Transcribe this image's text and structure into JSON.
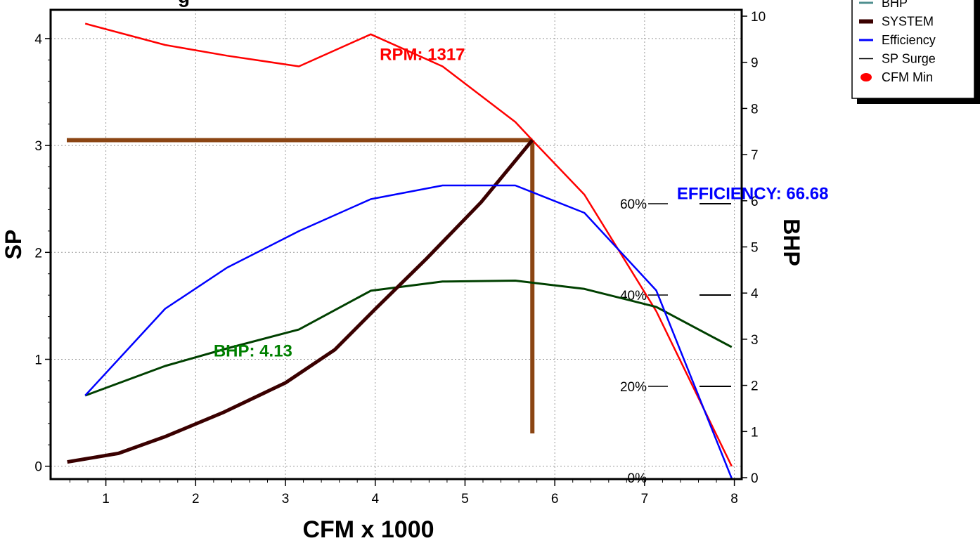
{
  "chart_data": {
    "type": "line",
    "xlabel": "CFM x 1000",
    "ylabel": "SP",
    "y2label": "BHP",
    "xlim": [
      0.55,
      8.0
    ],
    "ylim": [
      -0.1,
      4.25
    ],
    "y2lim": [
      0,
      10
    ],
    "x_ticks": [
      1,
      2,
      3,
      4,
      5,
      6,
      7,
      8
    ],
    "y_ticks": [
      0,
      1,
      2,
      3,
      4
    ],
    "y2_ticks": [
      0,
      1,
      2,
      3,
      4,
      5,
      6,
      7,
      8,
      9,
      10
    ],
    "efficiency_ticks": [
      {
        "label": "60%",
        "value": 60
      },
      {
        "label": "40%",
        "value": 40
      },
      {
        "label": "20%",
        "value": 20
      },
      {
        "label": "0%",
        "value": 0
      }
    ],
    "grid": true,
    "legend_position": "top-right",
    "series": [
      {
        "name": "RPM",
        "axis": "y",
        "color": "#ff0000",
        "x": [
          0.77,
          1.66,
          2.35,
          3.15,
          3.95,
          4.75,
          5.56,
          5.75,
          6.33,
          7.13,
          7.97
        ],
        "values": [
          4.14,
          3.94,
          3.84,
          3.74,
          4.04,
          3.74,
          3.22,
          3.05,
          2.54,
          1.45,
          0.0
        ]
      },
      {
        "name": "BHP",
        "axis": "y2",
        "color": "#004000",
        "x": [
          0.77,
          1.66,
          2.35,
          3.15,
          3.95,
          4.75,
          5.56,
          6.33,
          7.13,
          7.97
        ],
        "values": [
          1.78,
          2.42,
          2.8,
          3.21,
          4.05,
          4.25,
          4.27,
          4.09,
          3.7,
          2.83
        ]
      },
      {
        "name": "SYSTEM",
        "axis": "y",
        "color": "#3a0000",
        "x": [
          0.57,
          1.14,
          1.67,
          2.3,
          3.0,
          3.55,
          4.0,
          4.57,
          5.18,
          5.75
        ],
        "values": [
          0.04,
          0.12,
          0.28,
          0.5,
          0.78,
          1.09,
          1.47,
          1.94,
          2.47,
          3.05
        ]
      },
      {
        "name": "Efficiency",
        "axis": "efficiency",
        "color": "#0000ff",
        "x": [
          0.77,
          1.66,
          2.35,
          3.15,
          3.95,
          4.75,
          5.56,
          6.33,
          7.13,
          7.97
        ],
        "values": [
          18,
          37,
          46,
          54,
          61,
          64,
          64,
          58,
          41,
          -1
        ]
      }
    ],
    "legend": [
      {
        "label": "BHP",
        "color": "#4f8f8f",
        "kind": "line"
      },
      {
        "label": "SYSTEM",
        "color": "#3a0000",
        "kind": "thick-line"
      },
      {
        "label": "Efficiency",
        "color": "#0000ff",
        "kind": "line"
      },
      {
        "label": "SP Surge",
        "color": "#000000",
        "kind": "thin-line"
      },
      {
        "label": "CFM Min",
        "color": "#ff0000",
        "kind": "dot"
      }
    ],
    "operating_point": {
      "cfm": 5.75,
      "sp": 3.05,
      "color": "#8b4513"
    },
    "annotations": [
      {
        "text": "RPM: 1317",
        "color": "#ff0000",
        "x": 4.05,
        "y": 3.85
      },
      {
        "text": "BHP: 4.13",
        "color": "#008000",
        "x": 2.2,
        "y": 1.08
      },
      {
        "text": "EFFICIENCY: 66.68",
        "color": "#0000ff",
        "x": 7.36,
        "y": 2.55
      }
    ],
    "top_partial_text": "g"
  }
}
